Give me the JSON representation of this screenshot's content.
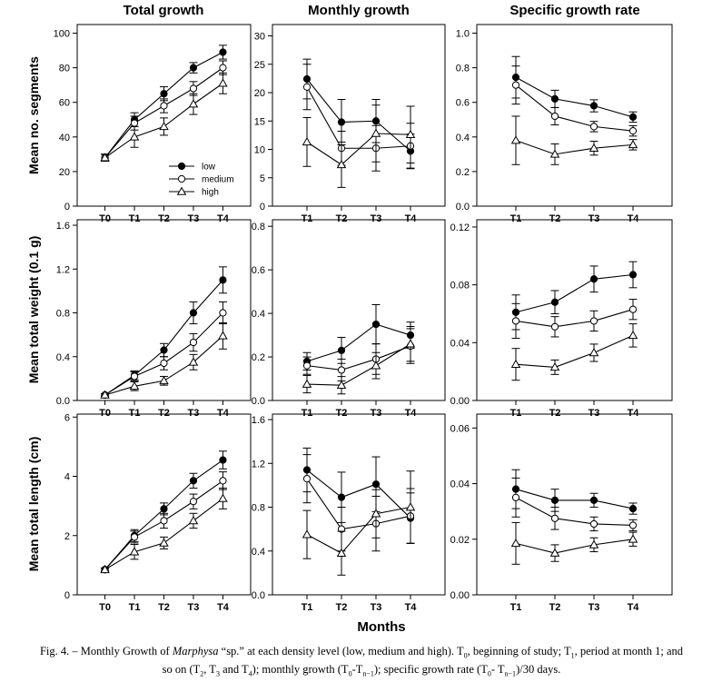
{
  "column_titles": [
    "Total growth",
    "Monthly growth",
    "Specific growth rate"
  ],
  "row_labels": [
    "Mean no. segments",
    "Mean total weight (0.1 g)",
    "Mean total  length  (cm)"
  ],
  "x_axis_label": "Months",
  "legend": [
    "low",
    "medium",
    "high"
  ],
  "caption": {
    "part1": "Fig. 4. – Monthly Growth of ",
    "species": "Marphysa",
    "part2": " “sp.” at each density level (low, medium and high). T",
    "line2": "so on (T"
  },
  "colors": {
    "low": "#000000",
    "medium": "#ffffff",
    "high": "#ffffff",
    "axis": "#000000"
  },
  "chart_data": [
    {
      "id": "total-segments",
      "type": "line",
      "categories": [
        "T0",
        "T1",
        "T2",
        "T3",
        "T4"
      ],
      "ylabel": "Mean no. segments",
      "ylim": [
        0,
        105
      ],
      "yticks": [
        0,
        20,
        40,
        60,
        80,
        100
      ],
      "series": [
        {
          "name": "low",
          "values": [
            28,
            50,
            65,
            80,
            89
          ],
          "errors": [
            2,
            4,
            4,
            3,
            4
          ]
        },
        {
          "name": "medium",
          "values": [
            28,
            48,
            58,
            68,
            80
          ],
          "errors": [
            2,
            4,
            4,
            4,
            4
          ]
        },
        {
          "name": "high",
          "values": [
            28,
            40,
            46,
            59,
            71
          ],
          "errors": [
            2,
            6,
            5,
            6,
            6
          ]
        }
      ]
    },
    {
      "id": "monthly-segments",
      "type": "line",
      "categories": [
        "T1",
        "T2",
        "T3",
        "T4"
      ],
      "ylim": [
        0,
        32
      ],
      "yticks": [
        0,
        5,
        10,
        15,
        20,
        25,
        30
      ],
      "series": [
        {
          "name": "low",
          "values": [
            22.4,
            14.8,
            15.0,
            9.7
          ],
          "errors": [
            3.5,
            4.0,
            3.8,
            3.0
          ]
        },
        {
          "name": "medium",
          "values": [
            21.0,
            10.2,
            10.2,
            10.6
          ],
          "errors": [
            4.0,
            3.0,
            4.0,
            4.0
          ]
        },
        {
          "name": "high",
          "values": [
            11.3,
            7.3,
            12.8,
            12.6
          ],
          "errors": [
            4.3,
            4.0,
            5.0,
            5.0
          ]
        }
      ]
    },
    {
      "id": "sgr-segments",
      "type": "line",
      "categories": [
        "T1",
        "T2",
        "T3",
        "T4"
      ],
      "ylim": [
        0,
        1.05
      ],
      "yticks": [
        0.0,
        0.2,
        0.4,
        0.6,
        0.8,
        1.0
      ],
      "series": [
        {
          "name": "low",
          "values": [
            0.745,
            0.62,
            0.58,
            0.515
          ],
          "errors": [
            0.12,
            0.05,
            0.035,
            0.03
          ]
        },
        {
          "name": "medium",
          "values": [
            0.7,
            0.52,
            0.46,
            0.435
          ],
          "errors": [
            0.11,
            0.05,
            0.03,
            0.03
          ]
        },
        {
          "name": "high",
          "values": [
            0.38,
            0.3,
            0.335,
            0.355
          ],
          "errors": [
            0.14,
            0.06,
            0.04,
            0.03
          ]
        }
      ]
    },
    {
      "id": "total-weight",
      "type": "line",
      "categories": [
        "T0",
        "T1",
        "T2",
        "T3",
        "T4"
      ],
      "ylabel": "Mean total weight (0.1 g)",
      "ylim": [
        0,
        1.65
      ],
      "yticks": [
        0.0,
        0.4,
        0.8,
        1.2,
        1.6
      ],
      "series": [
        {
          "name": "low",
          "values": [
            0.05,
            0.23,
            0.46,
            0.8,
            1.1
          ],
          "errors": [
            0.01,
            0.04,
            0.06,
            0.1,
            0.12
          ]
        },
        {
          "name": "medium",
          "values": [
            0.05,
            0.22,
            0.34,
            0.53,
            0.8
          ],
          "errors": [
            0.01,
            0.04,
            0.06,
            0.08,
            0.1
          ]
        },
        {
          "name": "high",
          "values": [
            0.05,
            0.13,
            0.18,
            0.35,
            0.59
          ],
          "errors": [
            0.01,
            0.04,
            0.04,
            0.07,
            0.12
          ]
        }
      ]
    },
    {
      "id": "monthly-weight",
      "type": "line",
      "categories": [
        "T1",
        "T2",
        "T3",
        "T4"
      ],
      "ylim": [
        0,
        0.83
      ],
      "yticks": [
        0.0,
        0.2,
        0.4,
        0.6,
        0.8
      ],
      "series": [
        {
          "name": "low",
          "values": [
            0.18,
            0.23,
            0.35,
            0.3
          ],
          "errors": [
            0.04,
            0.06,
            0.09,
            0.06
          ]
        },
        {
          "name": "medium",
          "values": [
            0.16,
            0.14,
            0.19,
            0.25
          ],
          "errors": [
            0.04,
            0.05,
            0.07,
            0.08
          ]
        },
        {
          "name": "high",
          "values": [
            0.075,
            0.07,
            0.16,
            0.26
          ],
          "errors": [
            0.04,
            0.04,
            0.06,
            0.08
          ]
        }
      ]
    },
    {
      "id": "sgr-weight",
      "type": "line",
      "categories": [
        "T1",
        "T2",
        "T3",
        "T4"
      ],
      "ylim": [
        0,
        0.125
      ],
      "yticks": [
        0.0,
        0.04,
        0.08,
        0.12
      ],
      "series": [
        {
          "name": "low",
          "values": [
            0.061,
            0.068,
            0.084,
            0.087
          ],
          "errors": [
            0.012,
            0.008,
            0.009,
            0.009
          ]
        },
        {
          "name": "medium",
          "values": [
            0.055,
            0.051,
            0.055,
            0.063
          ],
          "errors": [
            0.012,
            0.007,
            0.007,
            0.007
          ]
        },
        {
          "name": "high",
          "values": [
            0.025,
            0.023,
            0.033,
            0.045
          ],
          "errors": [
            0.011,
            0.005,
            0.006,
            0.008
          ]
        }
      ]
    },
    {
      "id": "total-length",
      "type": "line",
      "categories": [
        "T0",
        "T1",
        "T2",
        "T3",
        "T4"
      ],
      "ylabel": "Mean total  length  (cm)",
      "ylim": [
        0,
        6.1
      ],
      "yticks": [
        0,
        2,
        4,
        6
      ],
      "series": [
        {
          "name": "low",
          "values": [
            0.85,
            2.0,
            2.9,
            3.85,
            4.55
          ],
          "errors": [
            0.05,
            0.2,
            0.2,
            0.25,
            0.3
          ]
        },
        {
          "name": "medium",
          "values": [
            0.85,
            1.95,
            2.5,
            3.15,
            3.85
          ],
          "errors": [
            0.05,
            0.2,
            0.25,
            0.25,
            0.3
          ]
        },
        {
          "name": "high",
          "values": [
            0.85,
            1.45,
            1.75,
            2.5,
            3.25
          ],
          "errors": [
            0.05,
            0.25,
            0.2,
            0.25,
            0.35
          ]
        }
      ]
    },
    {
      "id": "monthly-length",
      "type": "line",
      "categories": [
        "T1",
        "T2",
        "T3",
        "T4"
      ],
      "ylim": [
        0,
        1.65
      ],
      "yticks": [
        0.0,
        0.4,
        0.8,
        1.2,
        1.6
      ],
      "series": [
        {
          "name": "low",
          "values": [
            1.14,
            0.89,
            1.01,
            0.7
          ],
          "errors": [
            0.2,
            0.23,
            0.25,
            0.23
          ]
        },
        {
          "name": "medium",
          "values": [
            1.06,
            0.6,
            0.65,
            0.72
          ],
          "errors": [
            0.22,
            0.2,
            0.25,
            0.25
          ]
        },
        {
          "name": "high",
          "values": [
            0.55,
            0.38,
            0.74,
            0.8
          ],
          "errors": [
            0.22,
            0.2,
            0.22,
            0.33
          ]
        }
      ]
    },
    {
      "id": "sgr-length",
      "type": "line",
      "categories": [
        "T1",
        "T2",
        "T3",
        "T4"
      ],
      "ylim": [
        0,
        0.065
      ],
      "yticks": [
        0.0,
        0.02,
        0.04,
        0.06
      ],
      "series": [
        {
          "name": "low",
          "values": [
            0.038,
            0.034,
            0.034,
            0.031
          ],
          "errors": [
            0.007,
            0.004,
            0.0025,
            0.002
          ]
        },
        {
          "name": "medium",
          "values": [
            0.035,
            0.0275,
            0.0255,
            0.025
          ],
          "errors": [
            0.007,
            0.004,
            0.0025,
            0.002
          ]
        },
        {
          "name": "high",
          "values": [
            0.0185,
            0.015,
            0.018,
            0.02
          ],
          "errors": [
            0.0075,
            0.003,
            0.0025,
            0.0025
          ]
        }
      ]
    }
  ]
}
